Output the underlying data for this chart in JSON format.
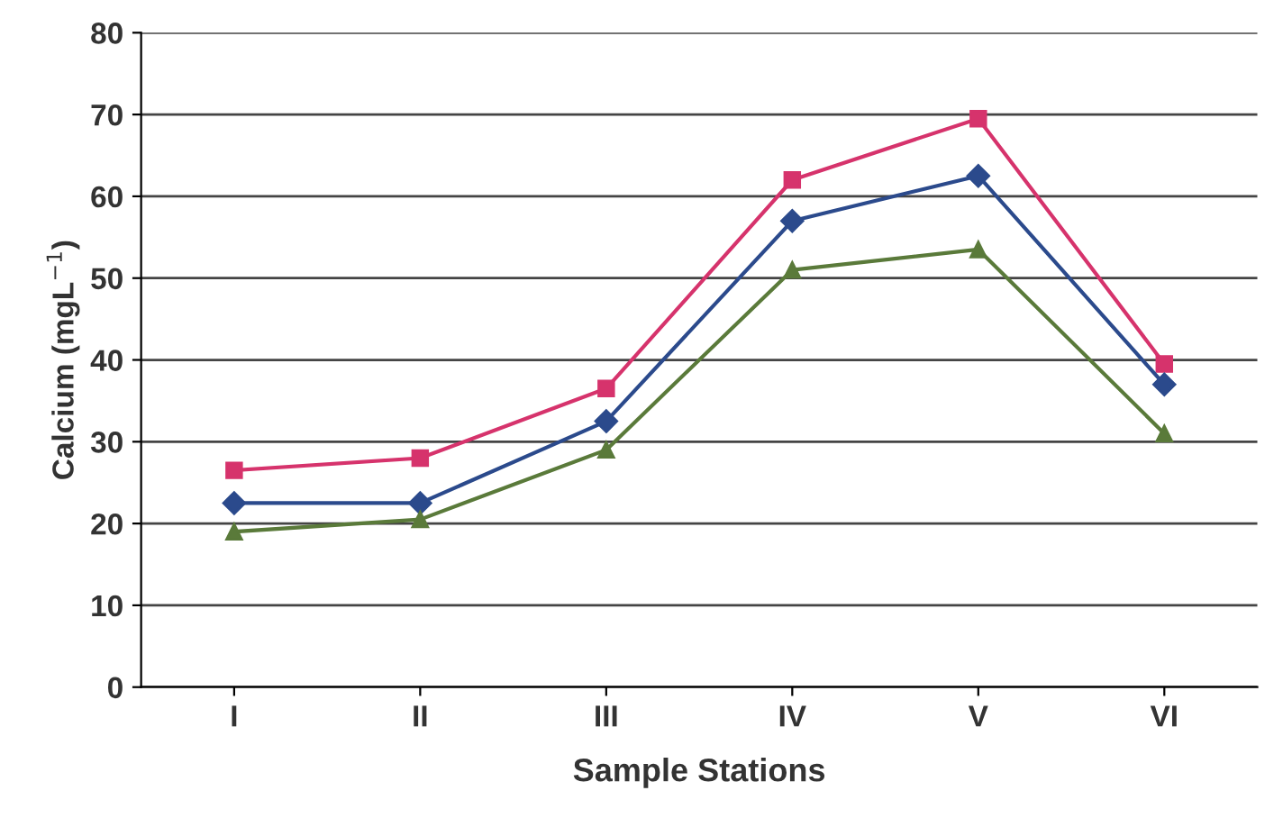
{
  "chart_data": {
    "type": "line",
    "xlabel": "Sample Stations",
    "ylabel": "Calcium (mgL$^{−1}$)",
    "categories": [
      "I",
      "II",
      "III",
      "IV",
      "V",
      "VI"
    ],
    "series": [
      {
        "color": "#d6336c",
        "marker": "square",
        "values": [
          26.5,
          28,
          36.5,
          62,
          69.5,
          39.5
        ]
      },
      {
        "color": "#2b4a8c",
        "marker": "diamond",
        "values": [
          22.5,
          22.5,
          32.5,
          57,
          62.5,
          37
        ]
      },
      {
        "color": "#5a7a3a",
        "marker": "triangle",
        "values": [
          19,
          20.5,
          29,
          51,
          53.5,
          31
        ]
      }
    ],
    "ylim": [
      0,
      80
    ],
    "yticks": [
      0,
      10,
      20,
      30,
      40,
      50,
      60,
      70,
      80
    ],
    "grid": "y",
    "line_style": "solid"
  }
}
